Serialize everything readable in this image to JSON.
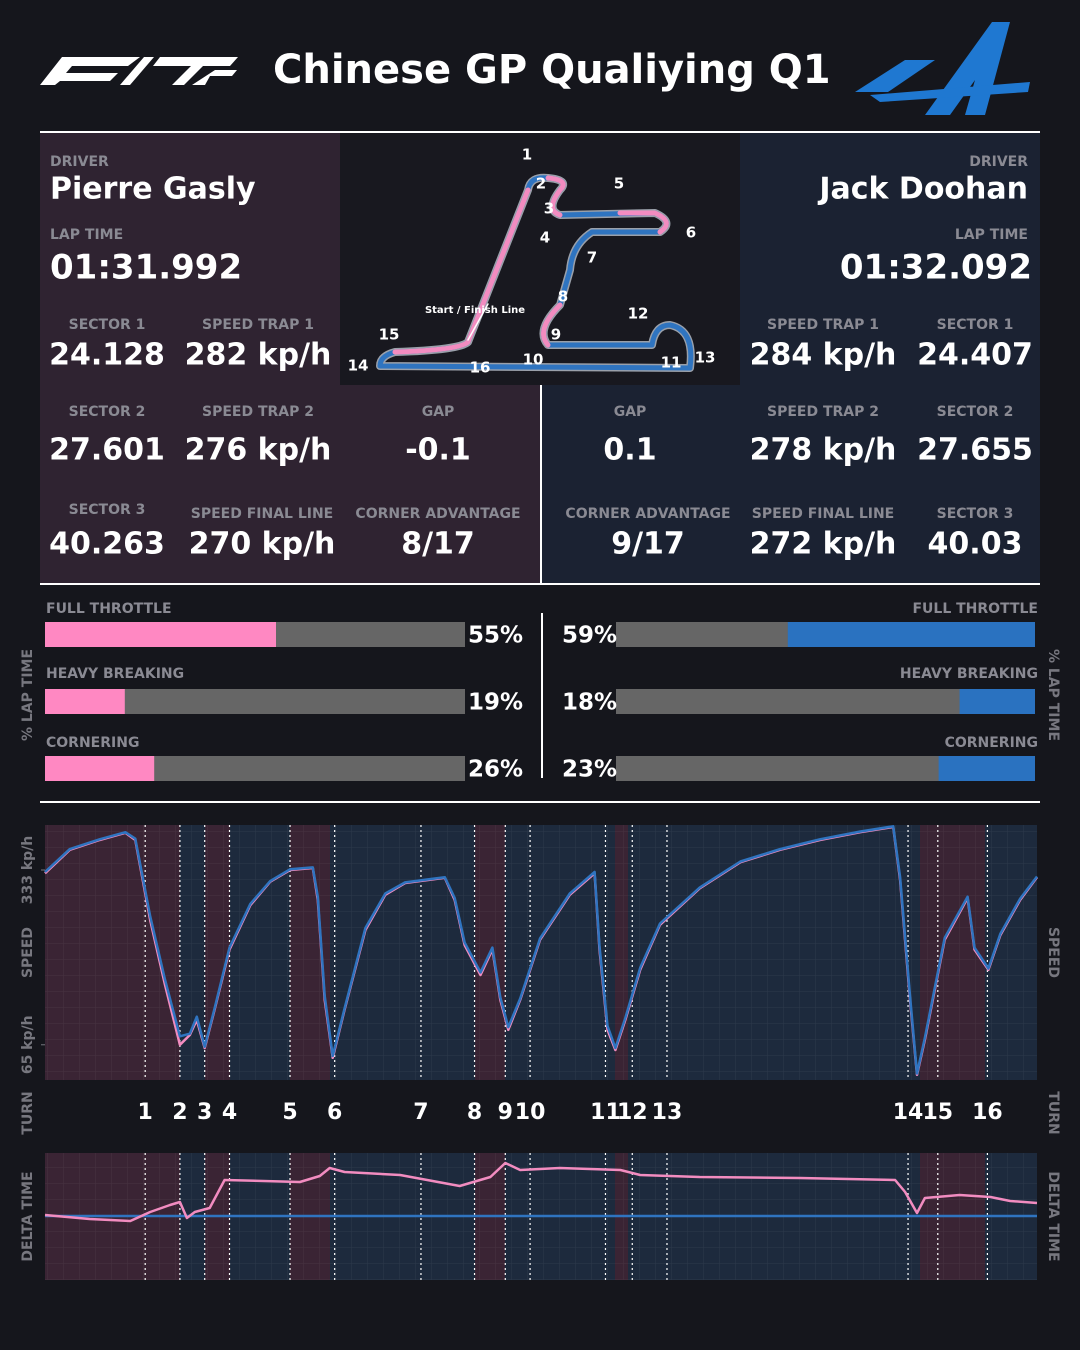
{
  "header": {
    "title": "Chinese GP Qualiying Q1"
  },
  "drivers": [
    {
      "driver_label": "DRIVER",
      "name": "Pierre Gasly",
      "lap_time_label": "LAP TIME",
      "lap_time": "01:31.992",
      "stats": [
        {
          "label": "SECTOR 1",
          "value": 24.128
        },
        {
          "label": "SPEED TRAP 1",
          "value": "282 kp/h"
        },
        {
          "label": "SECTOR 2",
          "value": 27.601
        },
        {
          "label": "SPEED TRAP 2",
          "value": "276 kp/h"
        },
        {
          "label": "GAP",
          "value": -0.1
        },
        {
          "label": "SECTOR 3",
          "value": 40.263
        },
        {
          "label": "SPEED FINAL LINE",
          "value": "270 kp/h"
        },
        {
          "label": "CORNER ADVANTAGE",
          "value": "8/17"
        }
      ]
    },
    {
      "driver_label": "DRIVER",
      "name": "Jack Doohan",
      "lap_time_label": "LAP TIME",
      "lap_time": "01:32.092",
      "stats": [
        {
          "label": "SPEED TRAP 1",
          "value": "284 kp/h"
        },
        {
          "label": "SECTOR 1",
          "value": 24.407
        },
        {
          "label": "GAP",
          "value": 0.1
        },
        {
          "label": "SPEED TRAP 2",
          "value": "278 kp/h"
        },
        {
          "label": "SECTOR 2",
          "value": 27.655
        },
        {
          "label": "CORNER ADVANTAGE",
          "value": "9/17"
        },
        {
          "label": "SPEED FINAL LINE",
          "value": "272 kp/h"
        },
        {
          "label": "SECTOR 3",
          "value": 40.03
        }
      ]
    }
  ],
  "track_map": {
    "turn_labels": [
      1,
      2,
      3,
      4,
      5,
      6,
      7,
      8,
      9,
      10,
      11,
      12,
      13,
      14,
      15,
      16
    ],
    "start_finish": "Start / Finish Line"
  },
  "chart_data": [
    {
      "type": "bar",
      "axis_label": "% LAP TIME",
      "categories": [
        "FULL THROTTLE",
        "HEAVY BREAKING",
        "CORNERING"
      ],
      "values": [
        55,
        19,
        26
      ],
      "value_labels": [
        "55%",
        "19%",
        "26%"
      ],
      "color": "#ff88c2",
      "xlim": [
        0,
        100
      ]
    },
    {
      "type": "bar",
      "axis_label": "% LAP TIME",
      "categories": [
        "FULL THROTTLE",
        "HEAVY BREAKING",
        "CORNERING"
      ],
      "values": [
        59,
        18,
        23
      ],
      "value_labels": [
        "59%",
        "18%",
        "23%"
      ],
      "color": "#2a72c0",
      "xlim": [
        0,
        100
      ]
    },
    {
      "type": "line",
      "axis_label": "SPEED",
      "turn_axis_label": "TURN",
      "xlim": [
        0,
        100
      ],
      "ylim": [
        11,
        402
      ],
      "yticks": [
        {
          "value": 333,
          "label": "333 kp/h"
        },
        {
          "value": 65,
          "label": "65 kp/h"
        }
      ],
      "turns": {
        "labels": [
          1,
          2,
          3,
          4,
          5,
          6,
          7,
          8,
          9,
          10,
          11,
          12,
          13,
          14,
          15,
          16
        ],
        "x": [
          10.1,
          13.6,
          16.1,
          18.6,
          24.7,
          29.2,
          37.9,
          43.3,
          46.4,
          48.9,
          56.5,
          59.2,
          62.7,
          87.0,
          90.0,
          95.0
        ]
      },
      "x": [
        0,
        2.5,
        5.5,
        8.1,
        9.1,
        10.6,
        12.1,
        13.6,
        14.6,
        15.3,
        16.1,
        17.1,
        18.6,
        20.7,
        22.7,
        24.7,
        27.0,
        27.5,
        28.2,
        29.0,
        30.2,
        32.3,
        34.3,
        36.3,
        38.8,
        40.3,
        41.3,
        42.3,
        43.9,
        45.1,
        45.9,
        46.7,
        47.9,
        49.9,
        52.9,
        55.4,
        55.9,
        56.7,
        57.5,
        58.5,
        60.0,
        62.0,
        66.0,
        70.1,
        74.1,
        78.1,
        82.2,
        85.5,
        86.2,
        87.2,
        87.9,
        88.7,
        90.7,
        93.0,
        93.7,
        95.1,
        96.3,
        98.3,
        100
      ],
      "series": [
        {
          "color": "#f28cc0",
          "values": [
            328,
            364,
            379,
            390,
            379,
            256,
            157,
            65,
            80,
            103,
            60,
            119,
            211,
            279,
            315,
            333,
            336,
            287,
            134,
            45,
            119,
            241,
            295,
            313,
            318,
            321,
            287,
            218,
            172,
            211,
            134,
            88,
            134,
            226,
            295,
            328,
            211,
            88,
            57,
            103,
            180,
            249,
            305,
            345,
            364,
            379,
            391,
            399,
            318,
            134,
            19,
            73,
            226,
            290,
            211,
            180,
            233,
            287,
            322
          ]
        },
        {
          "color": "#2f74c0",
          "values": [
            330,
            365,
            380,
            391,
            381,
            262,
            165,
            78,
            82,
            108,
            62,
            121,
            214,
            281,
            316,
            334,
            337,
            292,
            140,
            48,
            121,
            244,
            297,
            314,
            319,
            322,
            290,
            222,
            176,
            214,
            138,
            92,
            136,
            228,
            297,
            330,
            216,
            94,
            60,
            106,
            183,
            251,
            306,
            346,
            365,
            380,
            392,
            400,
            322,
            140,
            21,
            76,
            229,
            292,
            214,
            182,
            235,
            289,
            323
          ]
        }
      ]
    },
    {
      "type": "line",
      "axis_label": "DELTA TIME",
      "xlim": [
        0,
        100
      ],
      "ylim": [
        -0.64,
        0.63
      ],
      "series": [
        {
          "color": "#2f74c0",
          "x": [
            0,
            100
          ],
          "values": [
            0,
            0
          ]
        },
        {
          "color": "#f28cc0",
          "x": [
            0,
            4.5,
            8.6,
            10.6,
            12.6,
            13.6,
            14.3,
            15.1,
            16.6,
            18.1,
            25.7,
            27.7,
            28.7,
            30.2,
            35.8,
            41.8,
            44.9,
            46.4,
            47.9,
            51.9,
            58.0,
            60.0,
            66.0,
            76.1,
            85.7,
            86.7,
            87.9,
            88.7,
            92.2,
            95.3,
            97.3,
            100
          ],
          "values": [
            0.01,
            -0.03,
            -0.05,
            0.04,
            0.11,
            0.14,
            -0.02,
            0.04,
            0.08,
            0.36,
            0.34,
            0.4,
            0.48,
            0.44,
            0.41,
            0.3,
            0.39,
            0.53,
            0.46,
            0.48,
            0.46,
            0.41,
            0.39,
            0.38,
            0.36,
            0.24,
            0.03,
            0.18,
            0.21,
            0.19,
            0.15,
            0.13
          ]
        }
      ]
    }
  ]
}
